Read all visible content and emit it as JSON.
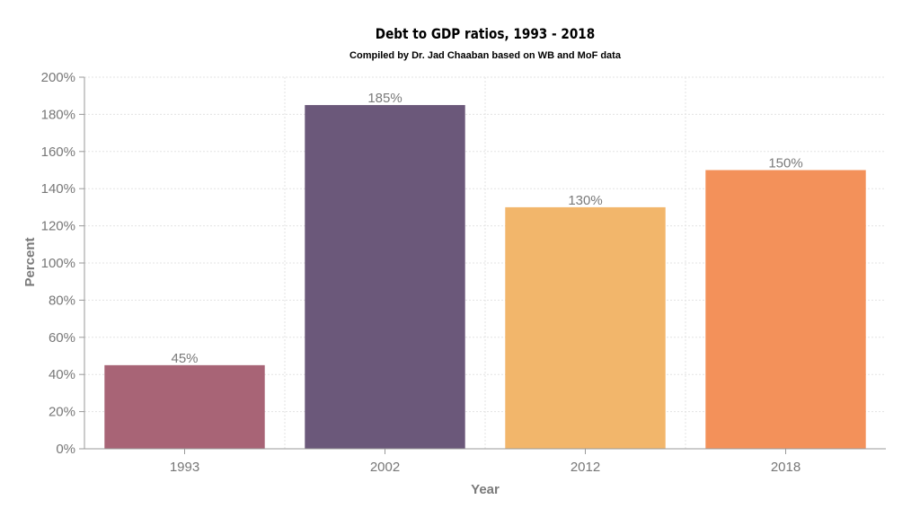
{
  "chart_data": {
    "type": "bar",
    "title": "Debt to GDP ratios, 1993 - 2018",
    "subtitle": "Compiled by Dr. Jad Chaaban based on WB and MoF data",
    "xlabel": "Year",
    "ylabel": "Percent",
    "categories": [
      "1993",
      "2002",
      "2012",
      "2018"
    ],
    "values": [
      45,
      185,
      130,
      150
    ],
    "value_labels": [
      "45%",
      "185%",
      "130%",
      "150%"
    ],
    "colors": [
      "#a86476",
      "#6b587a",
      "#f2b66b",
      "#f3915a"
    ],
    "ylim": [
      0,
      200
    ],
    "yticks": [
      0,
      20,
      40,
      60,
      80,
      100,
      120,
      140,
      160,
      180,
      200
    ],
    "ytick_labels": [
      "0%",
      "20%",
      "40%",
      "60%",
      "80%",
      "100%",
      "120%",
      "140%",
      "160%",
      "180%",
      "200%"
    ],
    "grid": true,
    "legend": "none"
  }
}
